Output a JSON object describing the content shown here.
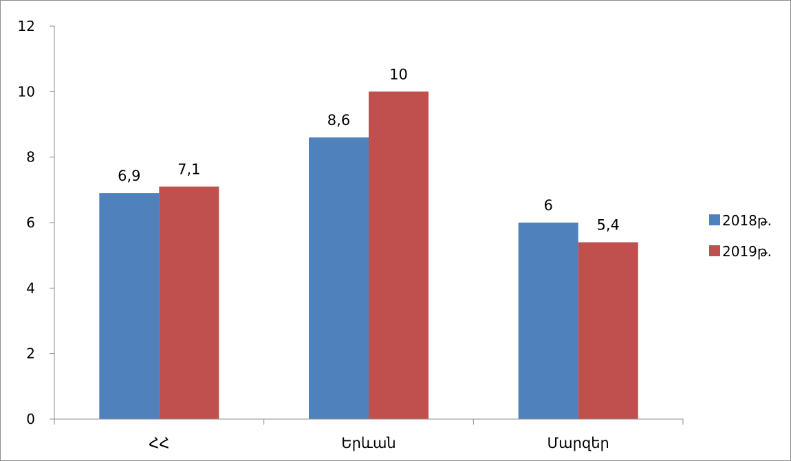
{
  "chart_data": {
    "type": "bar",
    "categories": [
      "ՀՀ",
      "Երևան",
      "Մարզեր"
    ],
    "series": [
      {
        "name": "2018թ.",
        "values": [
          6.9,
          8.6,
          6
        ],
        "labels": [
          "6,9",
          "8,6",
          "6"
        ],
        "color": "#4f81bd"
      },
      {
        "name": "2019թ.",
        "values": [
          7.1,
          10,
          5.4
        ],
        "labels": [
          "7,1",
          "10",
          "5,4"
        ],
        "color": "#c0504d"
      }
    ],
    "yticks": [
      0,
      2,
      4,
      6,
      8,
      10,
      12
    ],
    "ylim": [
      0,
      12
    ],
    "title": "",
    "xlabel": "",
    "ylabel": "",
    "grid": false,
    "legend_position": "right"
  }
}
